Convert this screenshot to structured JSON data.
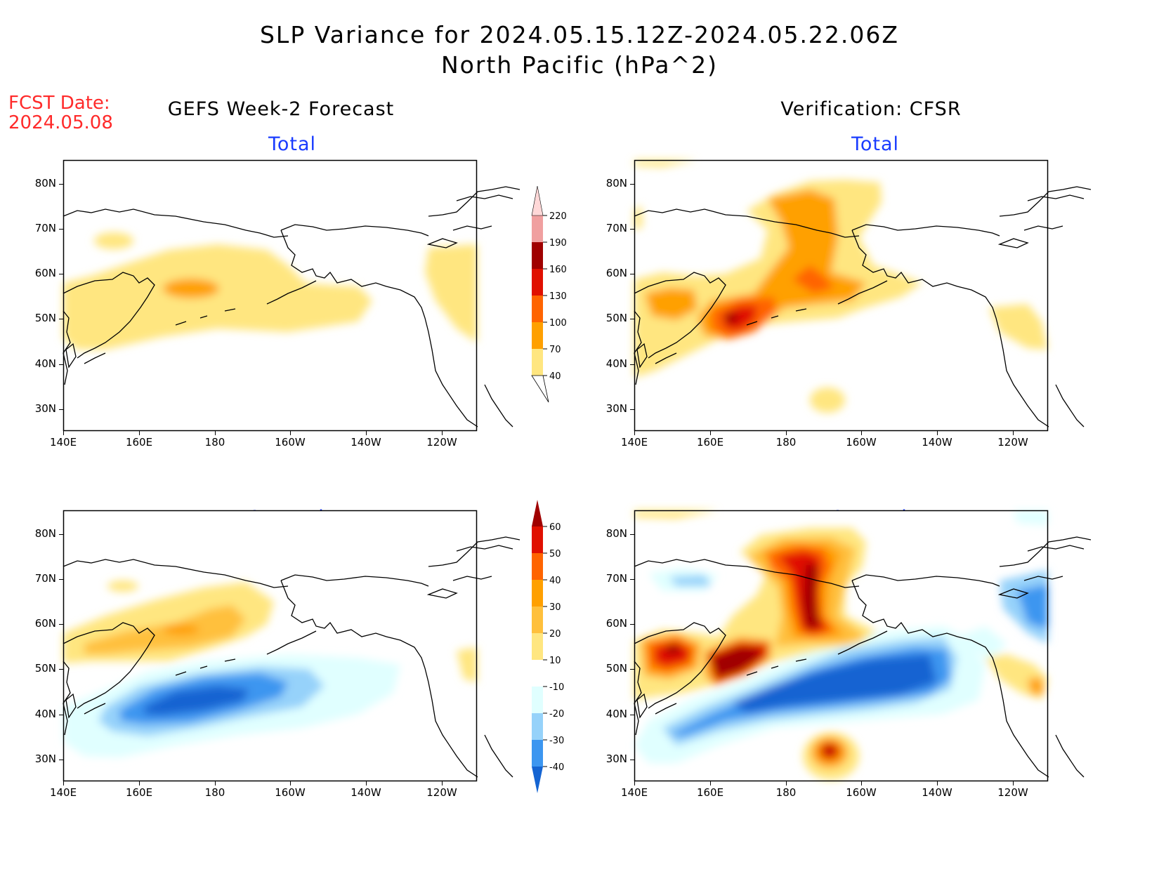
{
  "header": {
    "title_line1": "SLP Variance for 2024.05.15.12Z-2024.05.22.06Z",
    "title_line2": "North Pacific (hPa^2)"
  },
  "fcst": {
    "label": "FCST Date:",
    "date": "2024.05.08"
  },
  "columns": {
    "left_title": "GEFS Week-2 Forecast",
    "right_title": "Verification: CFSR"
  },
  "panels": {
    "total_label": "Total",
    "anomaly_label": "Anomaly"
  },
  "axes": {
    "lat_ticks": [
      "80N",
      "70N",
      "60N",
      "50N",
      "40N",
      "30N"
    ],
    "lon_ticks": [
      "140E",
      "160E",
      "180",
      "160W",
      "140W",
      "120W"
    ]
  },
  "colorbars": {
    "total": {
      "levels": [
        "40",
        "70",
        "100",
        "130",
        "160",
        "190",
        "220"
      ],
      "colors": [
        "#ffe680",
        "#ffa000",
        "#ff6400",
        "#e01000",
        "#a00000",
        "#f0a0a0",
        "#ffd8d8"
      ]
    },
    "anomaly": {
      "levels": [
        "60",
        "50",
        "40",
        "30",
        "20",
        "10",
        "-10",
        "-20",
        "-30",
        "-40"
      ],
      "colors": [
        "#a00000",
        "#e01000",
        "#ff6400",
        "#ffa000",
        "#ffc03c",
        "#ffe680",
        "#ffffff",
        "#e0ffff",
        "#96d2fa",
        "#3c96f0",
        "#1464d2"
      ]
    }
  }
}
